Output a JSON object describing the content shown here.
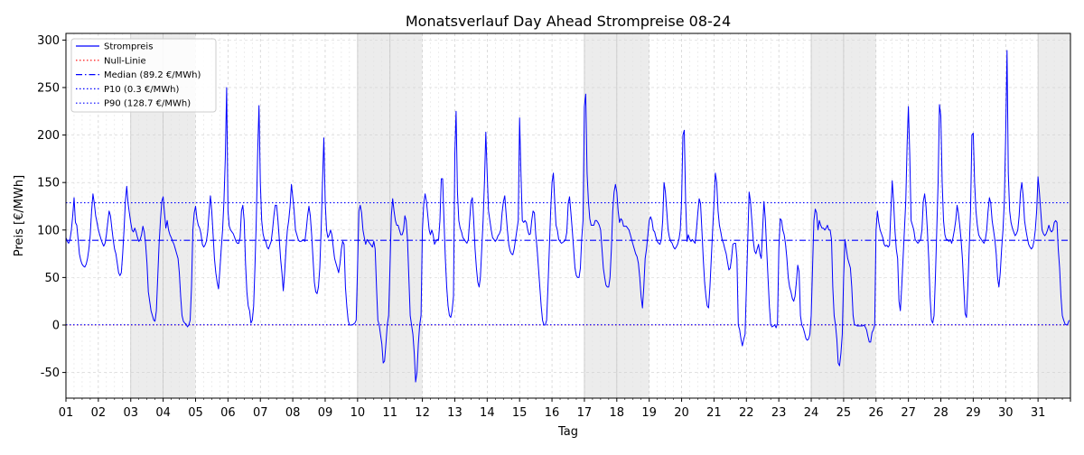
{
  "chart_data": {
    "type": "line",
    "title": "Monatsverlauf Day Ahead Strompreise 08-24",
    "xlabel": "Tag",
    "ylabel": "Preis [€/MWh]",
    "ylim": [
      -77,
      307
    ],
    "xlim": [
      1,
      32
    ],
    "yticks": [
      -50,
      0,
      50,
      100,
      150,
      200,
      250,
      300
    ],
    "xticks": [
      "01",
      "02",
      "03",
      "04",
      "05",
      "06",
      "07",
      "08",
      "09",
      "10",
      "11",
      "12",
      "13",
      "14",
      "15",
      "16",
      "17",
      "18",
      "19",
      "20",
      "21",
      "22",
      "23",
      "24",
      "25",
      "26",
      "27",
      "28",
      "29",
      "30",
      "31"
    ],
    "weekend_days": [
      3,
      4,
      10,
      11,
      17,
      18,
      24,
      25,
      31
    ],
    "grid": true,
    "legend_position": "top-left",
    "hourly_points_per_day": 24,
    "series": [
      {
        "name": "Strompreis",
        "color": "#0000ff",
        "style": "solid",
        "daily_profiles": [
          [
            92,
            88,
            86,
            90,
            100,
            115,
            134,
            108,
            105,
            90,
            75,
            68,
            64,
            62,
            61,
            64,
            70,
            80,
            95,
            120,
            138,
            128,
            115,
            108
          ],
          [
            100,
            95,
            90,
            86,
            83,
            86,
            95,
            108,
            120,
            115,
            102,
            90,
            80,
            75,
            65,
            55,
            52,
            55,
            75,
            100,
            130,
            146,
            128,
            118
          ],
          [
            108,
            100,
            98,
            102,
            98,
            92,
            88,
            90,
            95,
            104,
            98,
            85,
            65,
            35,
            25,
            15,
            10,
            5,
            4,
            15,
            50,
            85,
            110,
            130
          ],
          [
            135,
            118,
            102,
            110,
            100,
            95,
            92,
            88,
            85,
            80,
            75,
            70,
            55,
            30,
            10,
            4,
            2,
            1,
            -2,
            0,
            5,
            40,
            100,
            118
          ],
          [
            125,
            112,
            105,
            102,
            96,
            85,
            82,
            84,
            88,
            98,
            118,
            136,
            120,
            95,
            70,
            55,
            45,
            38,
            58,
            80,
            100,
            130,
            175,
            250
          ],
          [
            120,
            104,
            100,
            98,
            96,
            92,
            88,
            86,
            86,
            92,
            120,
            126,
            110,
            65,
            35,
            20,
            15,
            2,
            5,
            20,
            60,
            110,
            180,
            231
          ],
          [
            150,
            110,
            96,
            90,
            88,
            82,
            80,
            84,
            88,
            100,
            115,
            126,
            126,
            110,
            90,
            70,
            55,
            36,
            55,
            80,
            100,
            110,
            125,
            148
          ],
          [
            135,
            120,
            100,
            95,
            90,
            88,
            88,
            89,
            90,
            88,
            100,
            115,
            125,
            115,
            95,
            70,
            45,
            35,
            33,
            40,
            60,
            100,
            150,
            197
          ],
          [
            130,
            100,
            92,
            95,
            100,
            95,
            82,
            70,
            65,
            60,
            55,
            65,
            80,
            88,
            85,
            40,
            20,
            5,
            0,
            0,
            0,
            1,
            2,
            5
          ],
          [
            60,
            120,
            126,
            118,
            100,
            92,
            85,
            90,
            88,
            86,
            84,
            82,
            88,
            80,
            40,
            5,
            0,
            -10,
            -20,
            -40,
            -38,
            -20,
            0,
            10
          ],
          [
            60,
            115,
            133,
            120,
            110,
            105,
            105,
            100,
            95,
            95,
            100,
            115,
            110,
            90,
            50,
            10,
            0,
            -10,
            -30,
            -60,
            -50,
            -20,
            0,
            10
          ],
          [
            100,
            128,
            138,
            130,
            115,
            100,
            95,
            100,
            95,
            85,
            88,
            90,
            90,
            110,
            154,
            154,
            110,
            70,
            40,
            20,
            10,
            8,
            15,
            30
          ],
          [
            180,
            225,
            140,
            110,
            102,
            98,
            92,
            90,
            88,
            86,
            90,
            110,
            130,
            134,
            110,
            80,
            60,
            45,
            40,
            50,
            80,
            110,
            150,
            203
          ],
          [
            160,
            120,
            110,
            100,
            92,
            90,
            88,
            90,
            94,
            96,
            100,
            118,
            130,
            136,
            118,
            100,
            85,
            78,
            75,
            74,
            80,
            90,
            100,
            110
          ],
          [
            218,
            160,
            110,
            108,
            110,
            108,
            100,
            95,
            96,
            110,
            120,
            118,
            95,
            80,
            60,
            40,
            20,
            5,
            0,
            0,
            5,
            40,
            80,
            120
          ],
          [
            150,
            160,
            130,
            105,
            100,
            90,
            88,
            86,
            87,
            88,
            90,
            98,
            128,
            135,
            118,
            100,
            80,
            60,
            52,
            50,
            50,
            60,
            90,
            110
          ],
          [
            230,
            243,
            160,
            130,
            112,
            105,
            105,
            105,
            110,
            110,
            108,
            105,
            100,
            80,
            60,
            50,
            42,
            40,
            40,
            50,
            80,
            120,
            140,
            148
          ],
          [
            140,
            120,
            108,
            112,
            110,
            104,
            104,
            104,
            102,
            100,
            95,
            90,
            85,
            80,
            75,
            72,
            65,
            50,
            30,
            18,
            40,
            70,
            80,
            95
          ],
          [
            110,
            114,
            110,
            100,
            98,
            92,
            88,
            86,
            85,
            90,
            110,
            150,
            140,
            120,
            100,
            92,
            88,
            86,
            82,
            80,
            82,
            85,
            90,
            100
          ],
          [
            130,
            200,
            205,
            130,
            88,
            95,
            90,
            88,
            90,
            88,
            86,
            100,
            118,
            133,
            128,
            100,
            70,
            45,
            30,
            20,
            18,
            40,
            70,
            100
          ],
          [
            128,
            160,
            150,
            120,
            105,
            98,
            90,
            86,
            80,
            75,
            66,
            58,
            60,
            70,
            85,
            86,
            86,
            70,
            0,
            -5,
            -15,
            -22,
            -15,
            -10
          ],
          [
            40,
            90,
            140,
            130,
            110,
            90,
            78,
            75,
            80,
            85,
            75,
            70,
            100,
            130,
            112,
            80,
            50,
            20,
            0,
            -2,
            -1,
            0,
            -3,
            2
          ],
          [
            80,
            112,
            110,
            100,
            95,
            85,
            70,
            50,
            40,
            35,
            28,
            25,
            30,
            45,
            63,
            56,
            10,
            0,
            -3,
            -8,
            -14,
            -16,
            -15,
            -10
          ],
          [
            10,
            60,
            110,
            122,
            118,
            100,
            110,
            105,
            102,
            102,
            100,
            102,
            105,
            100,
            100,
            90,
            40,
            10,
            0,
            -15,
            -40,
            -43,
            -30,
            -10
          ],
          [
            50,
            90,
            80,
            70,
            65,
            60,
            40,
            10,
            0,
            0,
            -1,
            -1,
            -1,
            -1,
            -1,
            0,
            -2,
            -5,
            -12,
            -18,
            -18,
            -8,
            -5,
            0
          ],
          [
            100,
            120,
            108,
            100,
            96,
            92,
            85,
            83,
            84,
            82,
            84,
            120,
            152,
            130,
            100,
            80,
            70,
            25,
            15,
            40,
            70,
            100,
            130,
            190
          ],
          [
            230,
            180,
            110,
            105,
            100,
            90,
            88,
            86,
            88,
            90,
            100,
            130,
            138,
            125,
            100,
            70,
            30,
            5,
            2,
            10,
            50,
            100,
            150,
            232
          ],
          [
            220,
            150,
            110,
            95,
            90,
            90,
            88,
            90,
            86,
            92,
            100,
            110,
            126,
            118,
            105,
            90,
            70,
            40,
            12,
            8,
            40,
            80,
            120,
            200
          ],
          [
            202,
            150,
            120,
            105,
            95,
            92,
            90,
            88,
            86,
            90,
            100,
            120,
            134,
            128,
            110,
            100,
            90,
            75,
            50,
            40,
            55,
            80,
            100,
            130
          ],
          [
            200,
            289,
            160,
            120,
            108,
            102,
            98,
            94,
            96,
            100,
            115,
            140,
            150,
            135,
            110,
            100,
            92,
            85,
            82,
            80,
            82,
            88,
            100,
            120
          ],
          [
            156,
            140,
            120,
            100,
            96,
            94,
            96,
            100,
            105,
            100,
            98,
            100,
            108,
            110,
            108,
            80,
            60,
            30,
            10,
            5,
            1,
            0,
            1,
            5
          ]
        ]
      },
      {
        "name": "Null-Linie",
        "color": "#ff0000",
        "style": "dotted",
        "value": 0
      },
      {
        "name": "Median (89.2 €/MWh)",
        "color": "#0000ff",
        "style": "dashdot",
        "value": 89.2
      },
      {
        "name": "P10 (0.3 €/MWh)",
        "color": "#0000ff",
        "style": "dotted",
        "value": 0.3
      },
      {
        "name": "P90 (128.7 €/MWh)",
        "color": "#0000ff",
        "style": "dotted",
        "value": 128.7
      }
    ]
  }
}
